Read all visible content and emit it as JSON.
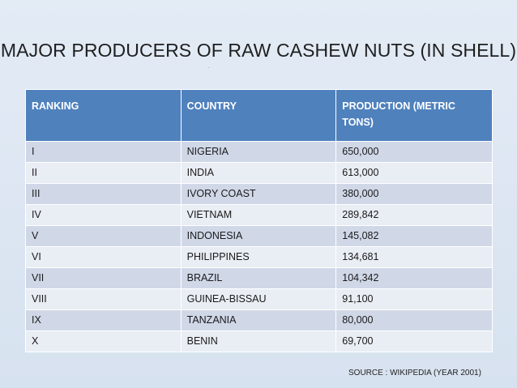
{
  "slide": {
    "title": "MAJOR PRODUCERS OF RAW CASHEW NUTS (IN SHELL)",
    "marker": ".",
    "source": "SOURCE : WIKIPEDIA (YEAR 2001)"
  },
  "table": {
    "headers": [
      "RANKING",
      "COUNTRY",
      "PRODUCTION (METRIC TONS)"
    ],
    "rows": [
      [
        "I",
        "NIGERIA",
        "650,000"
      ],
      [
        "II",
        "INDIA",
        "613,000"
      ],
      [
        "III",
        "IVORY COAST",
        "380,000"
      ],
      [
        "IV",
        "VIETNAM",
        "289,842"
      ],
      [
        "V",
        "INDONESIA",
        "145,082"
      ],
      [
        "VI",
        "PHILIPPINES",
        "134,681"
      ],
      [
        "VII",
        "BRAZIL",
        "104,342"
      ],
      [
        "VIII",
        "GUINEA-BISSAU",
        "91,100"
      ],
      [
        "IX",
        "TANZANIA",
        "80,000"
      ],
      [
        "X",
        "BENIN",
        "69,700"
      ]
    ]
  },
  "colors": {
    "header_bg": "#4f81bd",
    "row_odd": "#d0d8e8",
    "row_even": "#e9edf4",
    "background": "#dde6f2"
  }
}
